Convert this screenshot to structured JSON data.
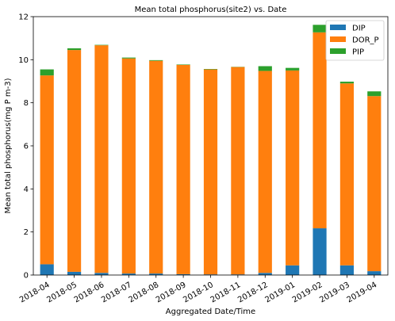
{
  "chart_data": {
    "type": "bar",
    "stacked": true,
    "title": "Mean total phosphorus(site2) vs. Date",
    "xlabel": "Aggregated Date/Time",
    "ylabel": "Mean total phosphorus(mg P m-3)",
    "ylim": [
      0,
      12
    ],
    "yticks": [
      "0",
      "2",
      "4",
      "6",
      "8",
      "10",
      "12"
    ],
    "categories": [
      "2018-04",
      "2018-05",
      "2018-06",
      "2018-07",
      "2018-08",
      "2018-09",
      "2018-10",
      "2018-11",
      "2018-12",
      "2019-01",
      "2019-02",
      "2019-03",
      "2019-04"
    ],
    "series": [
      {
        "name": "DIP",
        "color": "#1f77b4",
        "values": [
          0.5,
          0.15,
          0.1,
          0.07,
          0.07,
          0.04,
          0.03,
          0.03,
          0.1,
          0.45,
          2.17,
          0.45,
          0.18
        ]
      },
      {
        "name": "DOR_P",
        "color": "#ff7f0e",
        "values": [
          8.77,
          10.3,
          10.57,
          9.99,
          9.88,
          9.72,
          9.52,
          9.63,
          9.38,
          9.05,
          9.1,
          8.45,
          8.13
        ]
      },
      {
        "name": "PIP",
        "color": "#2ca02c",
        "values": [
          0.28,
          0.08,
          0.02,
          0.04,
          0.03,
          0.02,
          0.02,
          0.01,
          0.22,
          0.12,
          0.35,
          0.08,
          0.22
        ]
      }
    ],
    "legend_position": "top-right",
    "grid": false
  }
}
